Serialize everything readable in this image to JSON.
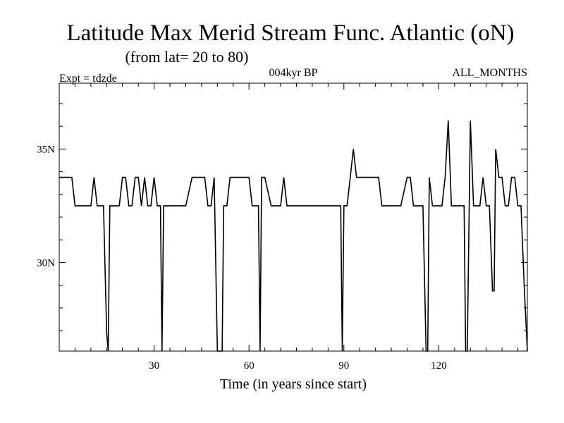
{
  "chart_data": {
    "type": "line",
    "title": "Latitude Max Merid Stream Func. Atlantic (oN)",
    "subtitle": "(from lat= 20 to 80)",
    "left_note": "Expt = tdzde",
    "center_note": "004kyr BP",
    "right_note": "ALL_MONTHS",
    "xlabel": "Time (in years since start)",
    "ylabel": "",
    "xlim": [
      0,
      148
    ],
    "ylim": [
      26.1,
      37.9
    ],
    "x_ticks": [
      30,
      60,
      90,
      120
    ],
    "x_tick_labels": [
      "30",
      "60",
      "90",
      "120"
    ],
    "y_ticks": [
      30,
      35
    ],
    "y_tick_labels": [
      "30N",
      "35N"
    ],
    "series": [
      {
        "color": "#000000",
        "x": [
          0,
          4,
          5,
          10,
          11,
          12,
          13,
          14,
          15,
          15.5,
          16,
          17,
          19,
          20,
          21,
          22,
          23,
          24,
          25,
          26,
          27,
          28,
          29,
          30,
          31,
          32,
          32.5,
          33,
          34,
          40,
          42,
          46,
          47,
          48,
          49,
          50,
          51,
          51.5,
          52,
          53,
          54,
          55,
          56,
          60,
          61,
          62,
          63,
          63.5,
          64,
          65,
          67,
          68,
          70,
          71,
          72,
          73,
          74,
          89,
          89.5,
          90,
          91,
          92,
          93,
          94,
          95,
          100,
          101,
          102,
          107,
          108,
          110,
          111,
          112,
          114,
          115,
          116,
          116.5,
          117,
          118,
          121,
          122,
          123,
          124,
          125,
          127,
          128,
          128.5,
          129,
          130,
          131,
          133,
          134,
          135,
          136,
          137,
          137.5,
          138,
          139,
          140,
          141,
          142,
          143,
          144,
          145,
          146,
          147,
          148
        ],
        "values": [
          33.75,
          33.75,
          32.5,
          32.5,
          33.75,
          32.5,
          32.5,
          32.5,
          26.9,
          26.1,
          32.5,
          32.5,
          32.5,
          33.75,
          33.75,
          32.5,
          32.5,
          33.75,
          33.75,
          32.5,
          33.75,
          32.5,
          32.5,
          33.75,
          32.5,
          32.5,
          26.1,
          32.5,
          32.5,
          32.5,
          33.75,
          33.75,
          32.5,
          32.5,
          33.75,
          26.1,
          26.1,
          26.1,
          32.5,
          32.5,
          33.75,
          33.75,
          33.75,
          33.75,
          32.5,
          32.5,
          32.5,
          26.1,
          33.75,
          33.75,
          32.5,
          32.5,
          32.5,
          33.75,
          32.5,
          32.5,
          32.5,
          32.5,
          26.1,
          32.5,
          32.5,
          33.75,
          35.0,
          33.75,
          33.75,
          33.75,
          33.75,
          32.5,
          32.5,
          32.5,
          33.75,
          33.75,
          32.5,
          32.5,
          32.5,
          26.1,
          26.1,
          33.75,
          32.5,
          32.5,
          33.75,
          36.25,
          32.5,
          32.5,
          32.5,
          32.5,
          26.1,
          26.1,
          36.25,
          32.5,
          32.5,
          33.75,
          32.5,
          32.5,
          28.75,
          28.75,
          35.0,
          33.75,
          33.75,
          32.5,
          32.5,
          33.75,
          33.75,
          32.5,
          32.5,
          29.0,
          26.1
        ]
      }
    ]
  }
}
